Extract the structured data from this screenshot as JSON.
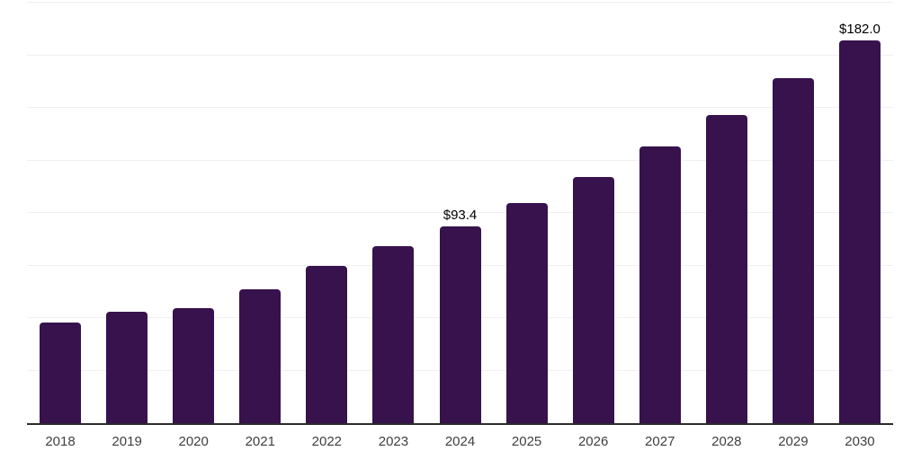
{
  "chart_data": {
    "type": "bar",
    "categories": [
      "2018",
      "2019",
      "2020",
      "2021",
      "2022",
      "2023",
      "2024",
      "2025",
      "2026",
      "2027",
      "2028",
      "2029",
      "2030"
    ],
    "values": [
      47.8,
      53.0,
      54.5,
      63.7,
      74.8,
      84.0,
      93.4,
      104.9,
      117.1,
      131.6,
      146.8,
      164.2,
      182.0
    ],
    "data_labels": {
      "2024": "$93.4",
      "2030": "$182.0"
    },
    "ylim": [
      0,
      200
    ],
    "gridline_step": 25,
    "grid": "horizontal-only",
    "legend": "none",
    "bar_color": "#37124D"
  },
  "style": {
    "background_color": "#ffffff",
    "gridline_color": "#f0f0f0",
    "axis_line_color": "#2b2b2b",
    "tick_label_color": "#3f3f3f",
    "data_label_color": "#000000"
  }
}
